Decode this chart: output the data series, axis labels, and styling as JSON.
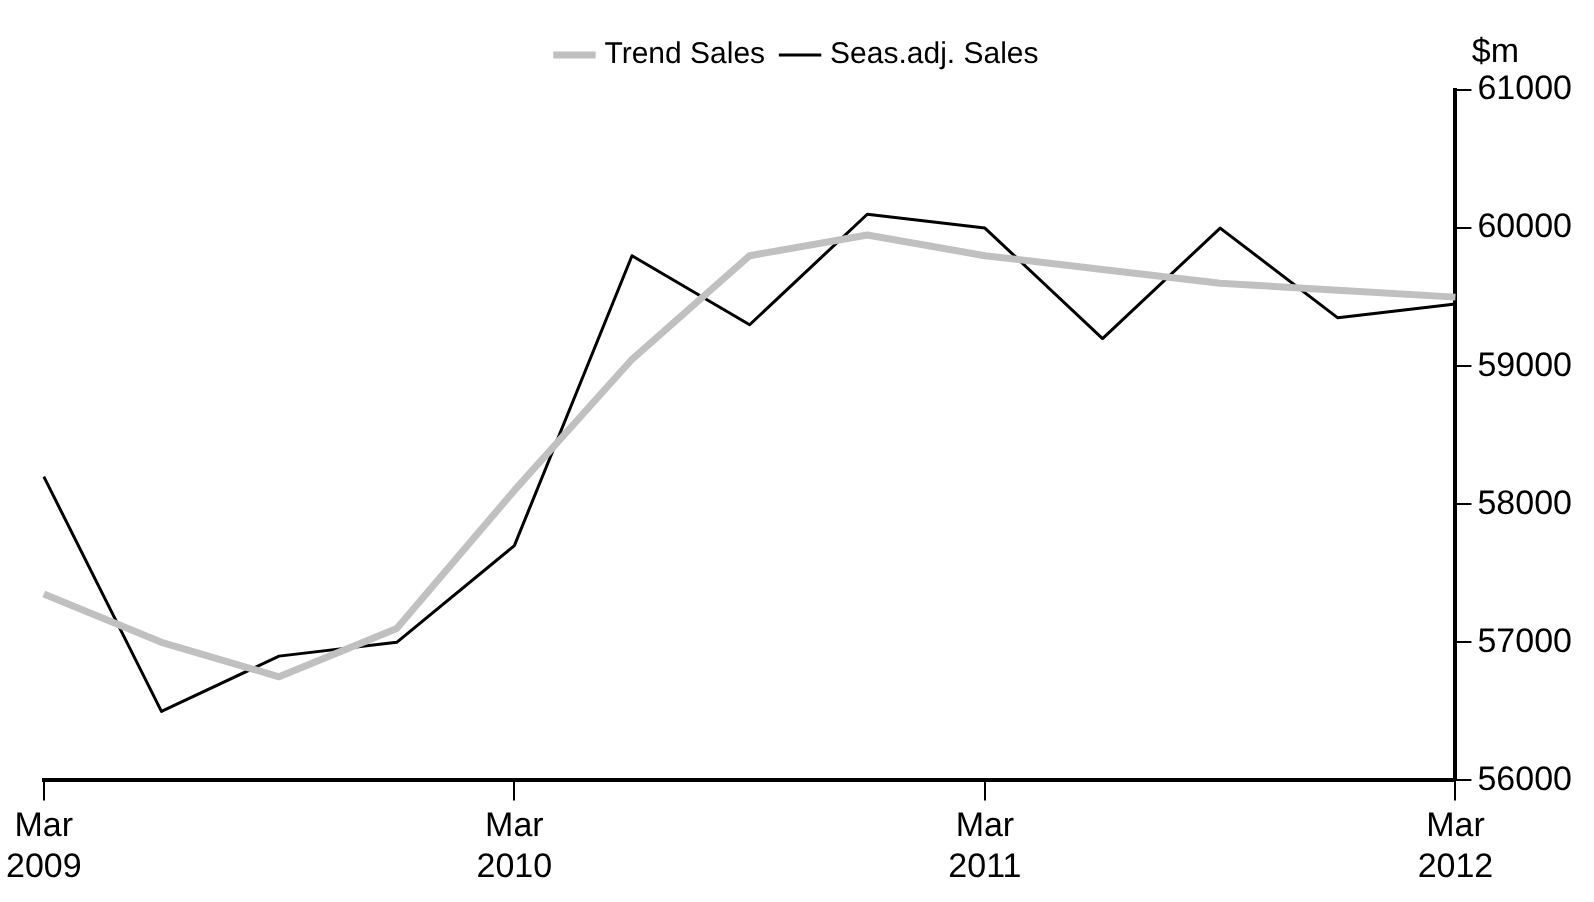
{
  "chart_data": {
    "type": "line",
    "ylabel": "$m",
    "categories": [
      "Mar 2009",
      null,
      null,
      null,
      "Mar 2010",
      null,
      null,
      null,
      "Mar 2011",
      null,
      null,
      null,
      "Mar 2012"
    ],
    "series": [
      {
        "name": "Seas.adj. Sales",
        "color": "#000000",
        "values": [
          58200,
          56500,
          56900,
          57000,
          57700,
          59800,
          59300,
          60100,
          60000,
          59200,
          60000,
          59350,
          59450
        ]
      },
      {
        "name": "Trend Sales",
        "color": "#c0c0c0",
        "values": [
          57350,
          57000,
          56750,
          57100,
          58100,
          59050,
          59800,
          59950,
          59800,
          59700,
          59600,
          59550,
          59500
        ]
      }
    ],
    "ylim": [
      56000,
      61000
    ],
    "yticks": [
      56000,
      57000,
      58000,
      59000,
      60000,
      61000
    ],
    "grid": false,
    "legend": "top",
    "marker": "none",
    "line_style": "solid"
  }
}
